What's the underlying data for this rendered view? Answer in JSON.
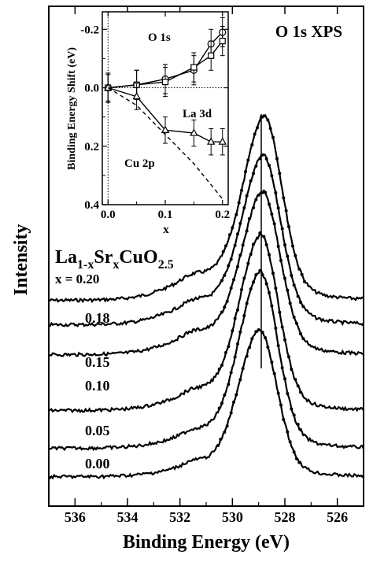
{
  "chart_data": [
    {
      "type": "line",
      "title": "O 1s XPS",
      "xlabel": "Binding Energy (eV)",
      "ylabel": "Intensity",
      "xlim": [
        537,
        525
      ],
      "x_reversed": true,
      "x_ticks": [
        536,
        534,
        532,
        530,
        528,
        526
      ],
      "compound": {
        "base": "La",
        "sub1": "1-x",
        "mid": "Sr",
        "sub2": "x",
        "end": "CuO",
        "sub3": "2.5"
      },
      "reference_line_x": 528.9,
      "series": [
        {
          "name": "x = 0.20",
          "label": "x = 0.20",
          "offset": 5,
          "peak_x": 528.75
        },
        {
          "name": "x = 0.18",
          "label": "0.18",
          "offset": 4,
          "peak_x": 528.8
        },
        {
          "name": "x = 0.15",
          "label": "0.15",
          "offset": 3,
          "peak_x": 528.82
        },
        {
          "name": "x = 0.10",
          "label": "0.10",
          "offset": 2,
          "peak_x": 528.9
        },
        {
          "name": "x = 0.05",
          "label": "0.05",
          "offset": 1,
          "peak_x": 528.92
        },
        {
          "name": "x = 0.00",
          "label": "0.00",
          "offset": 0,
          "peak_x": 528.95
        }
      ]
    },
    {
      "type": "line",
      "inset": true,
      "xlabel": "x",
      "ylabel": "Binding Energy Shift (eV)",
      "xlim": [
        -0.01,
        0.21
      ],
      "ylim": [
        0.4,
        -0.26
      ],
      "y_reversed": true,
      "x_ticks": [
        "0.0",
        "0.1",
        "0.2"
      ],
      "y_ticks": [
        "-0.2",
        "0.0",
        "0.2",
        "0.4"
      ],
      "x_tick_values": [
        0.0,
        0.1,
        0.2
      ],
      "y_tick_values": [
        -0.2,
        0.0,
        0.2,
        0.4
      ],
      "series": [
        {
          "name": "O 1s",
          "marker": "circle",
          "x": [
            0.0,
            0.05,
            0.1,
            0.15,
            0.18,
            0.2
          ],
          "y": [
            0.0,
            -0.01,
            -0.03,
            -0.06,
            -0.15,
            -0.19
          ],
          "err": 0.05
        },
        {
          "name": "La 3d",
          "marker": "square",
          "x": [
            0.0,
            0.05,
            0.1,
            0.15,
            0.18,
            0.2
          ],
          "y": [
            0.0,
            -0.01,
            -0.02,
            -0.07,
            -0.11,
            -0.16
          ],
          "err": 0.05
        },
        {
          "name": "Cu 2p",
          "marker": "triangle",
          "x": [
            0.0,
            0.05,
            0.1,
            0.15,
            0.18,
            0.2
          ],
          "y": [
            0.0,
            0.03,
            0.145,
            0.155,
            0.185,
            0.185
          ],
          "err": 0.045
        },
        {
          "name": "",
          "style": "dashed",
          "x": [
            0.0,
            0.05,
            0.1,
            0.15,
            0.2
          ],
          "y": [
            0.0,
            0.06,
            0.16,
            0.26,
            0.38
          ]
        }
      ]
    }
  ]
}
